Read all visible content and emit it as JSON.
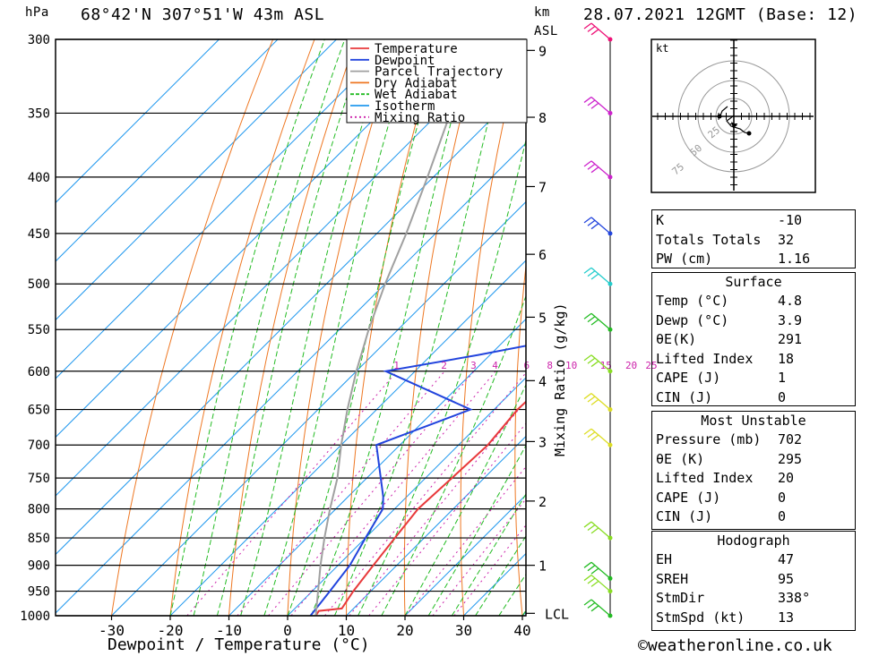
{
  "header": {
    "p_unit": "hPa",
    "location": "68°42'N 307°51'W 43m ASL",
    "km": "km",
    "asl": "ASL",
    "datetime": "28.07.2021 12GMT (Base: 12)"
  },
  "chart_data": {
    "type": "line",
    "title": "68°42'N 307°51'W 43m ASL",
    "xlabel": "Dewpoint / Temperature (°C)",
    "ylabel": "hPa",
    "mixing_ratio_label": "Mixing Ratio (g/kg)",
    "xlim": [
      -40,
      40
    ],
    "ylim": [
      1000,
      300
    ],
    "x_ticks": [
      -30,
      -20,
      -10,
      0,
      10,
      20,
      30,
      40
    ],
    "p_ticks": [
      300,
      350,
      400,
      450,
      500,
      550,
      600,
      650,
      700,
      750,
      800,
      850,
      900,
      950,
      1000
    ],
    "km_ticks": [
      {
        "label": "1",
        "p": 900
      },
      {
        "label": "2",
        "p": 787
      },
      {
        "label": "3",
        "p": 695
      },
      {
        "label": "4",
        "p": 612
      },
      {
        "label": "5",
        "p": 536
      },
      {
        "label": "6",
        "p": 470
      },
      {
        "label": "7",
        "p": 408
      },
      {
        "label": "8",
        "p": 353
      },
      {
        "label": "9",
        "p": 307
      },
      {
        "label": "LCL",
        "p": 995
      }
    ],
    "mixing_ratio_labels": [
      "1",
      "2",
      "3",
      "4",
      "6",
      "8",
      "10",
      "15",
      "20",
      "25"
    ],
    "legend": [
      {
        "name": "Temperature",
        "color": "#e8393b"
      },
      {
        "name": "Dewpoint",
        "color": "#2244dd"
      },
      {
        "name": "Parcel Trajectory",
        "color": "#a0a0a0"
      },
      {
        "name": "Dry Adiabat",
        "color": "#ee7722"
      },
      {
        "name": "Wet Adiabat",
        "color": "#22bb22"
      },
      {
        "name": "Isotherm",
        "color": "#2299ee"
      },
      {
        "name": "Mixing Ratio",
        "color": "#cc22aa"
      }
    ],
    "series": [
      {
        "name": "Temperature",
        "points": [
          [
            1000,
            4.8
          ],
          [
            990,
            4.5
          ],
          [
            985,
            8
          ],
          [
            950,
            7
          ],
          [
            900,
            6
          ],
          [
            850,
            5
          ],
          [
            800,
            4
          ],
          [
            750,
            4.5
          ],
          [
            700,
            5
          ],
          [
            650,
            4
          ],
          [
            600,
            4.5
          ],
          [
            580,
            3.5
          ],
          [
            560,
            3.5
          ],
          [
            550,
            2.5
          ],
          [
            500,
            0
          ],
          [
            450,
            -3.5
          ],
          [
            420,
            -5.5
          ],
          [
            410,
            -6
          ],
          [
            400,
            -6
          ],
          [
            380,
            -7.5
          ],
          [
            350,
            -10
          ],
          [
            300,
            -17
          ]
        ]
      },
      {
        "name": "Dewpoint",
        "points": [
          [
            1000,
            3.9
          ],
          [
            950,
            3
          ],
          [
            900,
            2
          ],
          [
            850,
            0
          ],
          [
            800,
            -2
          ],
          [
            780,
            -4
          ],
          [
            700,
            -14
          ],
          [
            650,
            -4
          ],
          [
            600,
            -25
          ],
          [
            580,
            -12
          ],
          [
            560,
            0
          ],
          [
            550,
            0
          ],
          [
            500,
            -2
          ],
          [
            450,
            -4
          ],
          [
            420,
            -6
          ],
          [
            410,
            -10
          ],
          [
            400,
            -10
          ],
          [
            395,
            -12
          ],
          [
            390,
            -18
          ],
          [
            370,
            -15
          ],
          [
            350,
            -19
          ],
          [
            330,
            -19
          ],
          [
            310,
            -17
          ],
          [
            300,
            -19
          ]
        ]
      },
      {
        "name": "Parcel Trajectory",
        "points": [
          [
            1000,
            4.8
          ],
          [
            950,
            1
          ],
          [
            900,
            -3
          ],
          [
            850,
            -7
          ],
          [
            800,
            -11
          ],
          [
            750,
            -15
          ],
          [
            700,
            -20
          ],
          [
            650,
            -25
          ],
          [
            600,
            -30
          ],
          [
            550,
            -35
          ],
          [
            500,
            -40
          ],
          [
            450,
            -45
          ],
          [
            400,
            -51
          ],
          [
            350,
            -58
          ],
          [
            300,
            -66
          ]
        ]
      }
    ],
    "wind_barbs": [
      {
        "p": 1000,
        "color": "#22bb22"
      },
      {
        "p": 950,
        "color": "#88dd22"
      },
      {
        "p": 925,
        "color": "#22bb22"
      },
      {
        "p": 850,
        "color": "#88dd22"
      },
      {
        "p": 700,
        "color": "#dddd22"
      },
      {
        "p": 650,
        "color": "#dddd22"
      },
      {
        "p": 600,
        "color": "#88dd22"
      },
      {
        "p": 550,
        "color": "#22bb22"
      },
      {
        "p": 500,
        "color": "#22cccc"
      },
      {
        "p": 450,
        "color": "#2244dd"
      },
      {
        "p": 400,
        "color": "#cc22cc"
      },
      {
        "p": 350,
        "color": "#cc22cc"
      },
      {
        "p": 300,
        "color": "#ee1177"
      }
    ]
  },
  "hodograph": {
    "unit": "kt",
    "ring_labels": [
      "25",
      "50",
      "75"
    ]
  },
  "table_indices": [
    {
      "label": "K",
      "value": "-10"
    },
    {
      "label": "Totals Totals",
      "value": "32"
    },
    {
      "label": "PW (cm)",
      "value": "1.16"
    }
  ],
  "table_surface": {
    "title": "Surface",
    "rows": [
      {
        "label": "Temp (°C)",
        "value": "4.8"
      },
      {
        "label": "Dewp (°C)",
        "value": "3.9"
      },
      {
        "label": "θE(K)",
        "value": "291"
      },
      {
        "label": "Lifted Index",
        "value": "18"
      },
      {
        "label": "CAPE (J)",
        "value": "1"
      },
      {
        "label": "CIN (J)",
        "value": "0"
      }
    ]
  },
  "table_unstable": {
    "title": "Most Unstable",
    "rows": [
      {
        "label": "Pressure (mb)",
        "value": "702"
      },
      {
        "label": "θE (K)",
        "value": "295"
      },
      {
        "label": "Lifted Index",
        "value": "20"
      },
      {
        "label": "CAPE (J)",
        "value": "0"
      },
      {
        "label": "CIN (J)",
        "value": "0"
      }
    ]
  },
  "table_hodograph": {
    "title": "Hodograph",
    "rows": [
      {
        "label": "EH",
        "value": "47"
      },
      {
        "label": "SREH",
        "value": "95"
      },
      {
        "label": "StmDir",
        "value": "338°"
      },
      {
        "label": "StmSpd (kt)",
        "value": "13"
      }
    ]
  },
  "footer": "©weatheronline.co.uk"
}
